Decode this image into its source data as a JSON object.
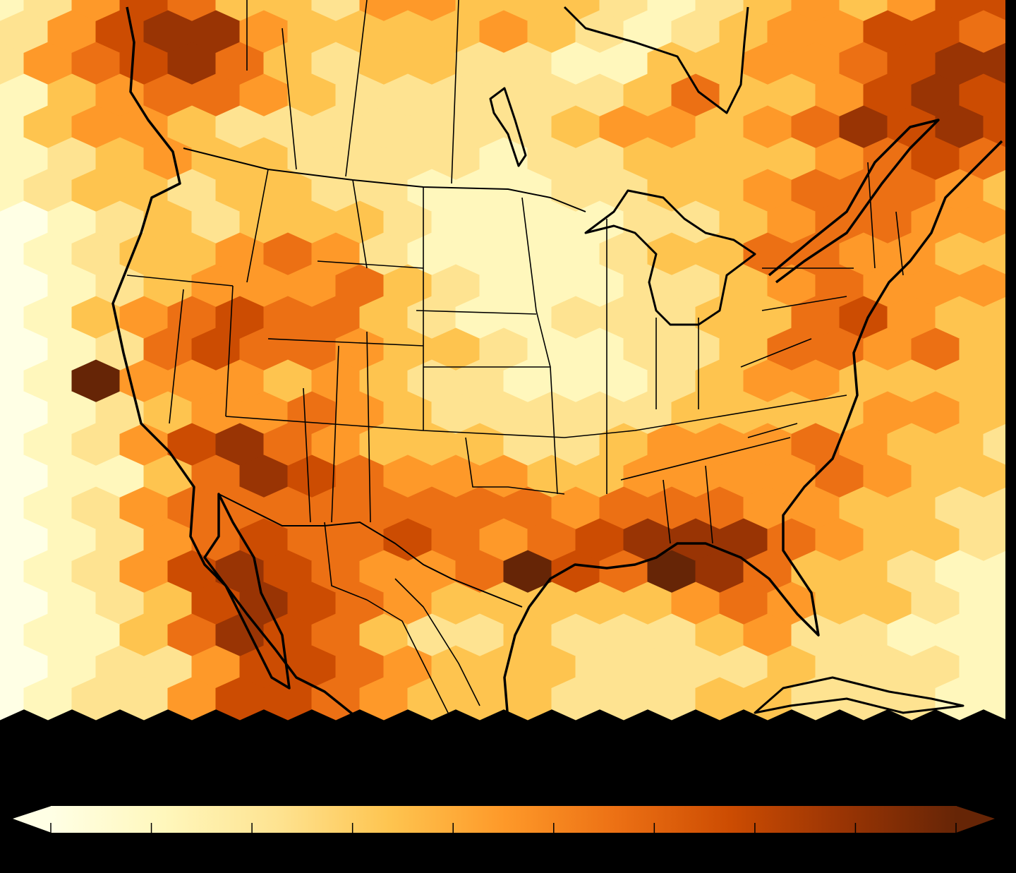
{
  "chart_data": {
    "type": "heatmap",
    "subtype": "hexbin-map",
    "region": "North America",
    "colormap": [
      "#ffffe5",
      "#fff7bc",
      "#fee391",
      "#fec44f",
      "#fe9929",
      "#ec7014",
      "#cc4c02",
      "#993404",
      "#662506"
    ],
    "hex_levels": [
      "1246533244333212343466",
      "2467743333432123446654",
      "2456753233221133445677",
      "1345543222222353346766",
      "1344322222223443457676",
      "1234332222122333345654",
      "1233233221112233455543",
      "0123233321111223455443",
      "0123345421111233554433",
      "0123444532111223454443",
      "0134565532112223356433",
      "0125655433211223554533",
      "0184443432211123443333",
      "0123445432222233334432",
      "0124675433322344454332",
      "0113576544433444454332",
      "0124555555554555443322",
      "0124565565456777543322",
      "0124676544586587533211",
      "0123676543333345433211",
      "0113576532232223422111",
      "0122466543332222322211",
      "0122466543332223322211"
    ],
    "colorbar": {
      "orientation": "horizontal",
      "extend": "both",
      "tick_count": 10
    }
  }
}
